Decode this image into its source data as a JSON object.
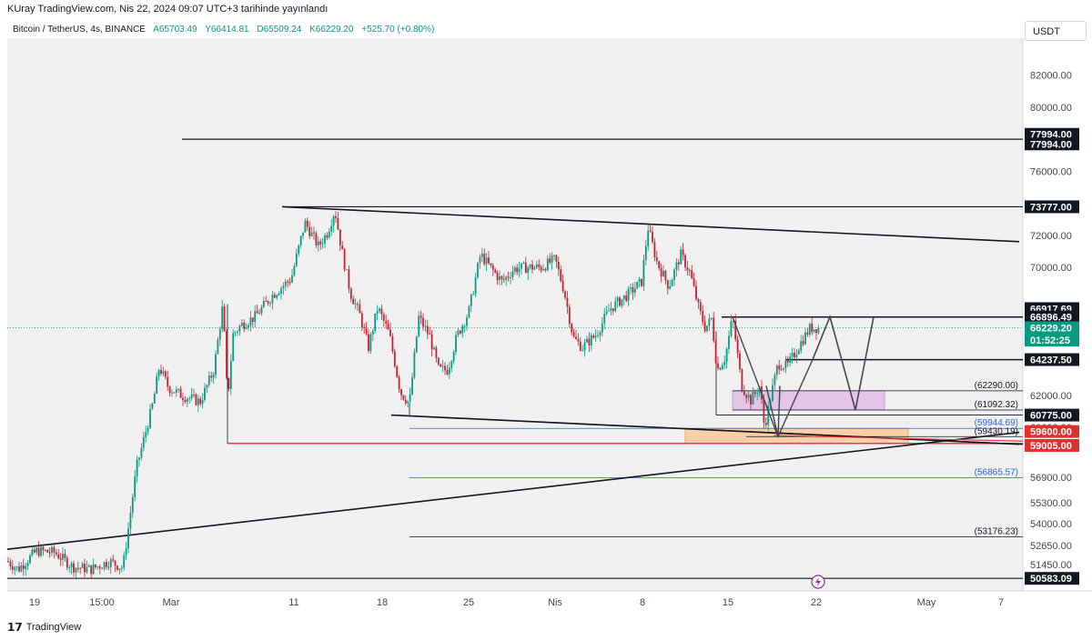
{
  "header": {
    "text": "KUray TradingView.com, Nis 22, 2024 09:07 UTC+3 tarihinde yayınlandı"
  },
  "symbol": {
    "name": "Bitcoin / TetherUS, 4s, BINANCE",
    "open": "A65703.49",
    "high": "Y66414.81",
    "low": "D65509.24",
    "close": "K66229.20",
    "change": "+525.70 (+0.80%)"
  },
  "currency_button": "USDT",
  "footer": {
    "logo": "𝟭𝟳",
    "brand": "TradingView"
  },
  "colors": {
    "up": "#089981",
    "down": "#c7202c",
    "background": "#f0f0f0",
    "axis_bg": "#ffffff",
    "blue": "#2962ff",
    "red_line": "#f23645",
    "zone_purple": "#e1bee7",
    "zone_orange": "#f9cb9c"
  },
  "chart_data": {
    "type": "candlestick",
    "ylim": [
      49800,
      84300
    ],
    "y_axis_ticks": [
      "82000.00",
      "80000.00",
      "76000.00",
      "72000.00",
      "70000.00",
      "62000.00",
      "60000.00",
      "56900.00",
      "55300.00",
      "54000.00",
      "52650.00",
      "51450.00"
    ],
    "x_axis_ticks": [
      "19",
      "15:00",
      "Mar",
      "11",
      "18",
      "25",
      "Nis",
      "8",
      "15",
      "22",
      "May",
      "7"
    ],
    "price_labels": [
      {
        "text": "77994.00",
        "style": "black"
      },
      {
        "text": "77994.00",
        "style": "black"
      },
      {
        "text": "73777.00",
        "style": "black"
      },
      {
        "text": "66917.69",
        "style": "black"
      },
      {
        "text": "66896.49",
        "style": "black"
      },
      {
        "text": "66229.20",
        "style": "green"
      },
      {
        "text": "01:52:25",
        "style": "green"
      },
      {
        "text": "64237.50",
        "style": "black"
      },
      {
        "text": "60775.00",
        "style": "black"
      },
      {
        "text": "59600.00",
        "style": "red"
      },
      {
        "text": "59005.00",
        "style": "red"
      },
      {
        "text": "50583.09",
        "style": "black"
      }
    ],
    "level_annotations": [
      {
        "text": "(62290.00)",
        "color": "black"
      },
      {
        "text": "(61092.32)",
        "color": "black"
      },
      {
        "text": "(59944.69)",
        "color": "blue"
      },
      {
        "text": "(59430.19)",
        "color": "black"
      },
      {
        "text": "(56865.57)",
        "color": "blue"
      },
      {
        "text": "(53176.23)",
        "color": "black"
      }
    ],
    "levels": [
      77994,
      73777,
      66896.49,
      64237.5,
      62290,
      61092.32,
      60775,
      59944.69,
      59430.19,
      59005,
      56865.57,
      53176.23,
      50583.09
    ],
    "price_path": [
      [
        0,
        52000
      ],
      [
        20,
        51150
      ],
      [
        40,
        52300
      ],
      [
        60,
        52200
      ],
      [
        80,
        51300
      ],
      [
        100,
        51150
      ],
      [
        120,
        51650
      ],
      [
        135,
        51250
      ],
      [
        142,
        54100
      ],
      [
        150,
        57500
      ],
      [
        160,
        59700
      ],
      [
        168,
        61500
      ],
      [
        175,
        63800
      ],
      [
        185,
        62500
      ],
      [
        200,
        62000
      ],
      [
        220,
        61600
      ],
      [
        235,
        63600
      ],
      [
        245,
        67700
      ],
      [
        250,
        61600
      ],
      [
        256,
        65800
      ],
      [
        265,
        66400
      ],
      [
        280,
        66900
      ],
      [
        300,
        68300
      ],
      [
        320,
        69300
      ],
      [
        335,
        72800
      ],
      [
        350,
        71300
      ],
      [
        360,
        72200
      ],
      [
        368,
        73600
      ],
      [
        375,
        71200
      ],
      [
        385,
        68400
      ],
      [
        395,
        67100
      ],
      [
        405,
        65000
      ],
      [
        415,
        67500
      ],
      [
        428,
        65800
      ],
      [
        440,
        62200
      ],
      [
        450,
        61500
      ],
      [
        460,
        66900
      ],
      [
        472,
        65700
      ],
      [
        482,
        63600
      ],
      [
        492,
        63600
      ],
      [
        502,
        65700
      ],
      [
        515,
        67200
      ],
      [
        528,
        70800
      ],
      [
        540,
        69900
      ],
      [
        552,
        69100
      ],
      [
        565,
        69900
      ],
      [
        580,
        70000
      ],
      [
        595,
        70000
      ],
      [
        610,
        70500
      ],
      [
        620,
        68500
      ],
      [
        630,
        65600
      ],
      [
        640,
        65000
      ],
      [
        655,
        65800
      ],
      [
        670,
        67400
      ],
      [
        690,
        68300
      ],
      [
        705,
        69100
      ],
      [
        712,
        72500
      ],
      [
        722,
        70300
      ],
      [
        735,
        68800
      ],
      [
        748,
        70800
      ],
      [
        758,
        69700
      ],
      [
        768,
        67400
      ],
      [
        775,
        66200
      ],
      [
        782,
        66800
      ],
      [
        788,
        63600
      ],
      [
        797,
        64400
      ],
      [
        805,
        66900
      ],
      [
        815,
        62600
      ],
      [
        825,
        61700
      ],
      [
        835,
        62600
      ],
      [
        840,
        60000
      ],
      [
        848,
        62200
      ],
      [
        855,
        64000
      ],
      [
        865,
        63800
      ],
      [
        880,
        65300
      ],
      [
        890,
        66200
      ],
      [
        900,
        66229
      ]
    ],
    "forecast_path": [
      [
        893,
        64238
      ],
      [
        912,
        66917
      ],
      [
        940,
        61092
      ],
      [
        960,
        66896
      ]
    ],
    "trendlines": [
      {
        "x1": 310,
        "y1": 73777,
        "x2": 1120,
        "y2": 71600
      },
      {
        "x1": 430,
        "y1": 60775,
        "x2": 1120,
        "y2": 58950
      },
      {
        "x1": 8,
        "y1": 52400,
        "x2": 1120,
        "y2": 59700
      }
    ],
    "zones": [
      {
        "label": "purple",
        "x1": 805,
        "x2": 972,
        "top": 62290,
        "bottom": 61092.32
      },
      {
        "label": "orange",
        "x1": 753,
        "x2": 998,
        "top": 59944.69,
        "bottom": 59005
      }
    ]
  }
}
